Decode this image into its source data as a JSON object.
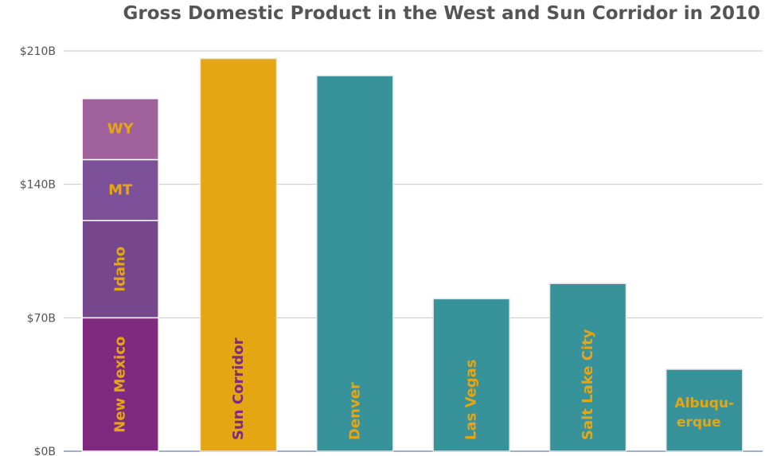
{
  "chart_data": {
    "type": "bar",
    "title": "Gross Domestic Product in the West and Sun Corridor in 2010",
    "xlabel": "",
    "ylabel": "",
    "ylim": [
      0,
      210
    ],
    "yticks": [
      0,
      70,
      140,
      210
    ],
    "ytick_labels": [
      "$0B",
      "$70B",
      "$140B",
      "$210B"
    ],
    "grid": true,
    "label_color": "#e5a614",
    "stack": {
      "segments": [
        {
          "name": "New Mexico",
          "value": 70,
          "color": "#7f2a7f"
        },
        {
          "name": "Idaho",
          "value": 51,
          "color": "#76478c"
        },
        {
          "name": "MT",
          "value": 32,
          "color": "#7d5199"
        },
        {
          "name": "WY",
          "value": 32,
          "color": "#a0609c"
        }
      ]
    },
    "bars": [
      {
        "label": "Sun Corridor",
        "value": 206,
        "color": "#e5a614",
        "label_color": "#7f2a7f"
      },
      {
        "label": "Denver",
        "value": 197,
        "color": "#37929a"
      },
      {
        "label": "Las Vegas",
        "value": 80,
        "color": "#37929a"
      },
      {
        "label": "Salt Lake City",
        "value": 88,
        "color": "#37929a"
      },
      {
        "label": "Albuqu-",
        "label2": "erque",
        "value": 43,
        "color": "#37929a"
      }
    ]
  }
}
